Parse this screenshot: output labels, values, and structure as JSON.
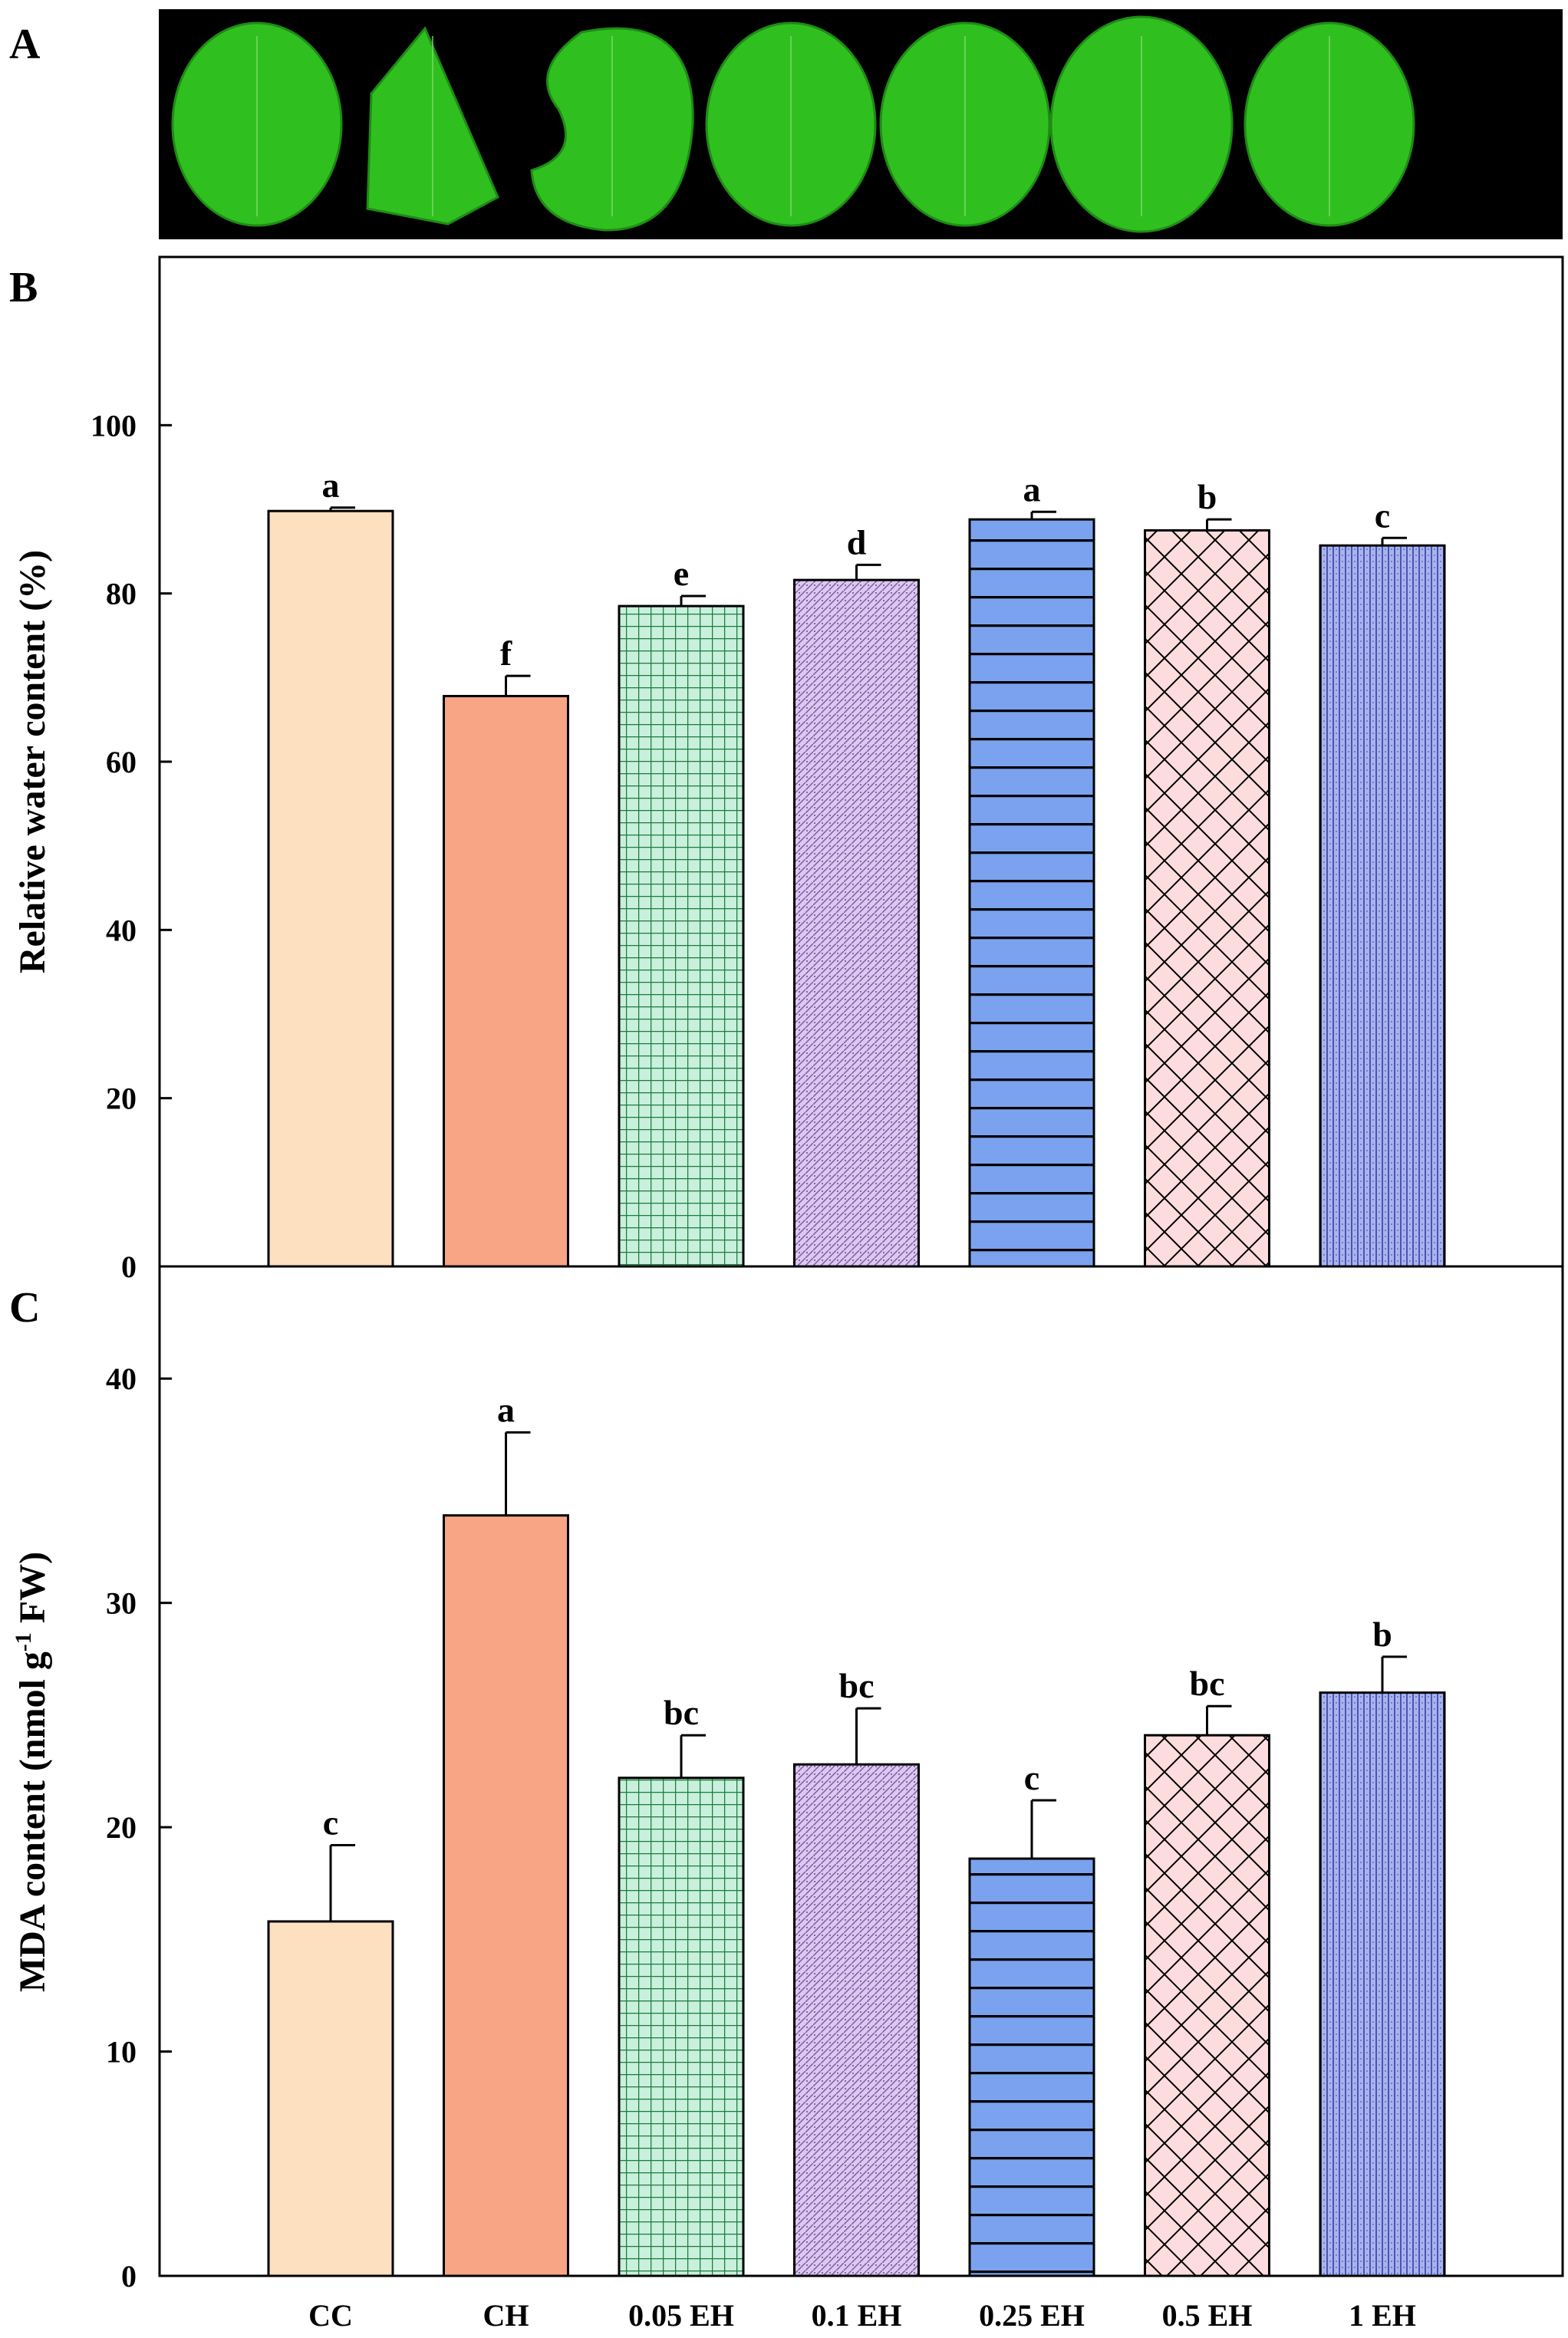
{
  "panels": {
    "a": {
      "letter": "A",
      "leaf_count": 7
    },
    "b": {
      "letter": "B"
    },
    "c": {
      "letter": "C"
    }
  },
  "colors": {
    "leaf_fill": "#2fc020",
    "leaf_dark": "#1e8c14",
    "photo_bg": "#000000",
    "CC": "#fde0c0",
    "CH": "#f8a585",
    "EH_005": "#c8f0dc",
    "EH_01": "#dcc8f0",
    "EH_025": "#7ba2ee",
    "EH_05": "#fcdcdc",
    "EH_1": "#a9b4ef"
  },
  "chart_data": [
    {
      "panel": "B",
      "type": "bar",
      "categories": [
        "CC",
        "CH",
        "0.05 EH",
        "0.1 EH",
        "0.25 EH",
        "0.5 EH",
        "1 EH"
      ],
      "values": [
        89.8,
        67.8,
        78.5,
        81.6,
        88.8,
        87.5,
        85.7
      ],
      "errors": [
        0.4,
        2.4,
        1.2,
        1.8,
        0.9,
        1.3,
        0.9
      ],
      "significance": [
        "a",
        "f",
        "e",
        "d",
        "a",
        "b",
        "c"
      ],
      "patterns": [
        "solid",
        "solid",
        "grid",
        "dots",
        "hlines",
        "crosshatch",
        "vlines"
      ],
      "xlabel": "",
      "ylabel": "Relative water content (%)",
      "ylim": [
        0,
        120
      ],
      "yticks": [
        0,
        20,
        40,
        60,
        80,
        100
      ]
    },
    {
      "panel": "C",
      "type": "bar",
      "categories": [
        "CC",
        "CH",
        "0.05 EH",
        "0.1 EH",
        "0.25 EH",
        "0.5 EH",
        "1 EH"
      ],
      "values": [
        15.8,
        33.9,
        22.2,
        22.8,
        18.6,
        24.1,
        26.0
      ],
      "errors": [
        3.4,
        3.7,
        1.9,
        2.5,
        2.6,
        1.3,
        1.6
      ],
      "significance": [
        "c",
        "a",
        "bc",
        "bc",
        "c",
        "bc",
        "b"
      ],
      "patterns": [
        "solid",
        "solid",
        "grid",
        "dots",
        "hlines",
        "crosshatch",
        "vlines"
      ],
      "xlabel": "",
      "ylabel": "MDA content (nmol g-1 FW)",
      "ylabel_parts": {
        "before": "MDA content (nmol g",
        "sup": "-1",
        "after": " FW)"
      },
      "ylim": [
        0,
        45
      ],
      "yticks": [
        0,
        10,
        20,
        30,
        40
      ]
    }
  ]
}
